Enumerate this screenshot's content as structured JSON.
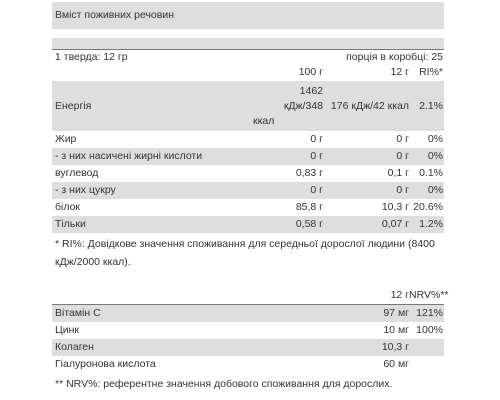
{
  "title": "Вміст поживних речовин",
  "serving": {
    "left": "1 тверда: 12 гр",
    "right": "порція в коробці: 25"
  },
  "header": {
    "per100": "100 г",
    "per12": "12 г",
    "ri": "RI%*"
  },
  "energy": {
    "label": "Енергія",
    "per100_lines": [
      "1462",
      "кДж/348",
      "ккал"
    ],
    "per12": "176 кДж/42 ккал",
    "ri": "2.1%"
  },
  "rows": [
    {
      "label": "Жир",
      "per100": "0 г",
      "per12": "0 г",
      "ri": "0%"
    },
    {
      "label": "- з них насичені жирні кислоти",
      "per100": "0 г",
      "per12": "0 г",
      "ri": "0%"
    },
    {
      "label": "вуглевод",
      "per100": "0,83 г",
      "per12": "0,1 г",
      "ri": "0.1%"
    },
    {
      "label": "- з них цукру",
      "per100": "0 г",
      "per12": "0 г",
      "ri": "0%"
    },
    {
      "label": "білок",
      "per100": "85,8 г",
      "per12": "10,3 г",
      "ri": "20.6%"
    },
    {
      "label": "Тільки",
      "per100": "0,58 г",
      "per12": "0,07 г",
      "ri": "1.2%"
    }
  ],
  "ri_note": "* RI%: Довідкове значення споживання для середньої дорослої людини (8400 кДж/2000 ккал).",
  "vitamins_header": {
    "per12": "12 г",
    "nrv": "NRV%**"
  },
  "vitamins": [
    {
      "label": "Вітамін С",
      "per12": "97 мг",
      "nrv": "121%"
    },
    {
      "label": "Цинк",
      "per12": "10 мг",
      "nrv": "100%"
    },
    {
      "label": "Колаген",
      "per12": "10,3 г",
      "nrv": ""
    },
    {
      "label": "Гіалуронова кислота",
      "per12": "60 мг",
      "nrv": ""
    }
  ],
  "nrv_note": "** NRV%: референтне значення добового споживання для дорослих."
}
